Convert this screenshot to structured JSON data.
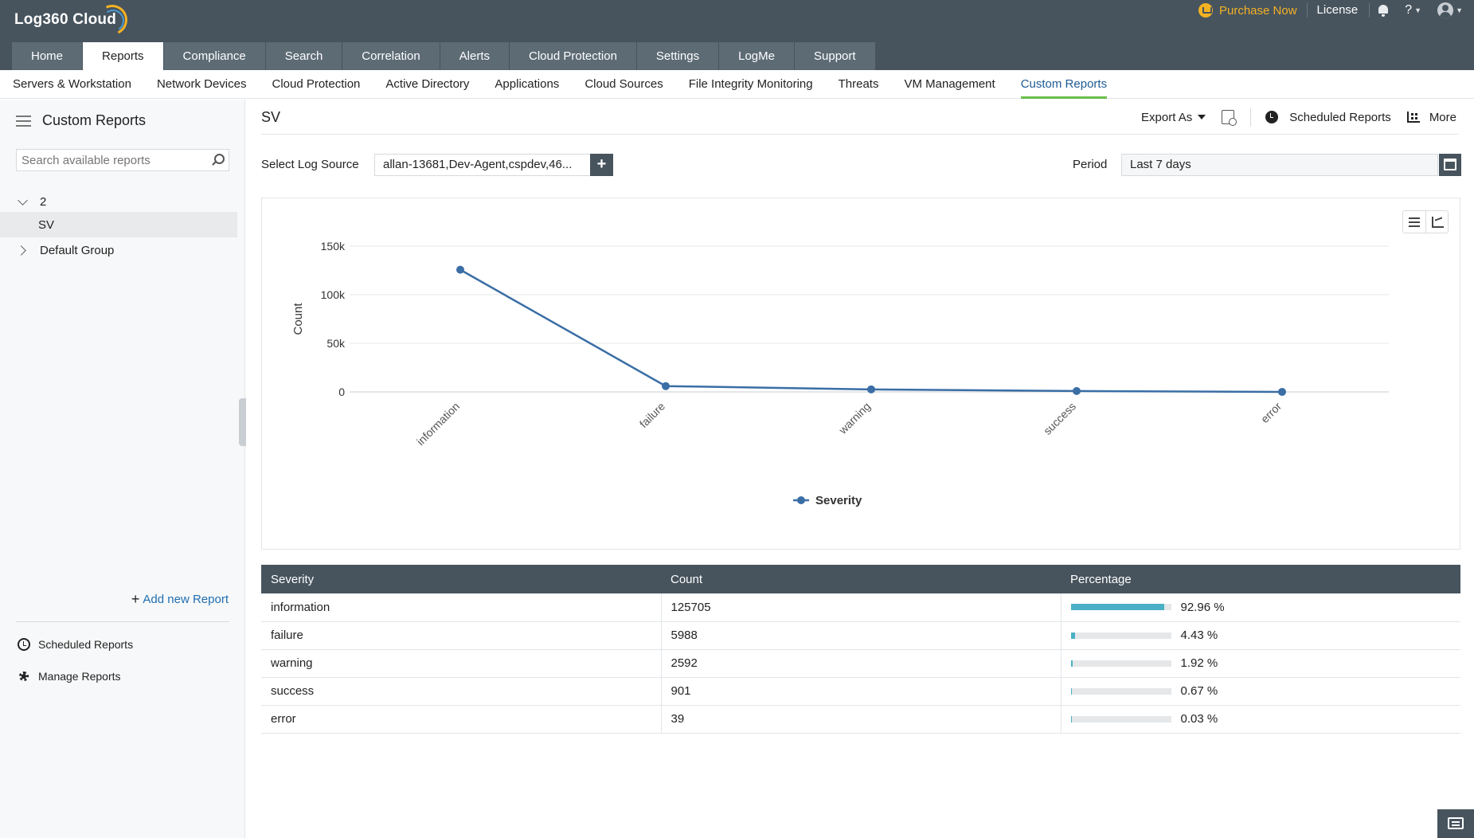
{
  "app": {
    "logo": "Log360 Cloud",
    "purchase": "Purchase Now",
    "license": "License",
    "help": "?"
  },
  "main_tabs": [
    "Home",
    "Reports",
    "Compliance",
    "Search",
    "Correlation",
    "Alerts",
    "Cloud Protection",
    "Settings",
    "LogMe",
    "Support"
  ],
  "active_main_tab": "Reports",
  "sub_tabs": [
    "Servers & Workstation",
    "Network Devices",
    "Cloud Protection",
    "Active Directory",
    "Applications",
    "Cloud Sources",
    "File Integrity Monitoring",
    "Threats",
    "VM Management",
    "Custom Reports"
  ],
  "active_sub_tab": "Custom Reports",
  "sidebar": {
    "title": "Custom Reports",
    "search_placeholder": "Search available reports",
    "tree": [
      {
        "label": "2",
        "expanded": true
      },
      {
        "label": "SV",
        "selected": true
      },
      {
        "label": "Default Group",
        "expanded": false
      }
    ],
    "add_report": "Add new Report",
    "scheduled": "Scheduled Reports",
    "manage": "Manage Reports"
  },
  "content": {
    "title": "SV",
    "export": "Export As",
    "scheduled": "Scheduled Reports",
    "more": "More",
    "log_source_label": "Select Log Source",
    "log_source_value": "allan-13681,Dev-Agent,cspdev,46...",
    "period_label": "Period",
    "period_value": "Last 7 days"
  },
  "chart_data": {
    "type": "line",
    "categories": [
      "information",
      "failure",
      "warning",
      "success",
      "error"
    ],
    "series": [
      {
        "name": "Severity",
        "values": [
          125705,
          5988,
          2592,
          901,
          39
        ]
      }
    ],
    "ylabel": "Count",
    "xlabel": "",
    "ylim": [
      0,
      150000
    ],
    "yticks": [
      {
        "value": 0,
        "label": "0"
      },
      {
        "value": 50000,
        "label": "50k"
      },
      {
        "value": 100000,
        "label": "100k"
      },
      {
        "value": 150000,
        "label": "150k"
      }
    ],
    "grid": true,
    "legend": "bottom-center",
    "line_color": "#3a6ea5"
  },
  "table": {
    "headers": [
      "Severity",
      "Count",
      "Percentage"
    ],
    "rows": [
      {
        "severity": "information",
        "count": "125705",
        "percentage": "92.96 %",
        "pct": 92.96
      },
      {
        "severity": "failure",
        "count": "5988",
        "percentage": "4.43 %",
        "pct": 4.43
      },
      {
        "severity": "warning",
        "count": "2592",
        "percentage": "1.92 %",
        "pct": 1.92
      },
      {
        "severity": "success",
        "count": "901",
        "percentage": "0.67 %",
        "pct": 0.67
      },
      {
        "severity": "error",
        "count": "39",
        "percentage": "0.03 %",
        "pct": 0.03
      }
    ]
  },
  "colors": {
    "header_bg": "#47545e",
    "accent_green": "#6abf4b",
    "accent_gold": "#f4b223",
    "bar_fill": "#4bb0c6"
  }
}
